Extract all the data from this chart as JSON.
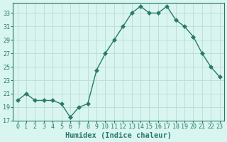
{
  "x": [
    0,
    1,
    2,
    3,
    4,
    5,
    6,
    7,
    8,
    9,
    10,
    11,
    12,
    13,
    14,
    15,
    16,
    17,
    18,
    19,
    20,
    21,
    22,
    23
  ],
  "y": [
    20,
    21,
    20,
    20,
    20,
    19.5,
    17.5,
    19,
    19.5,
    24.5,
    27,
    29,
    31,
    33,
    34,
    33,
    33,
    34,
    32,
    31,
    29.5,
    27,
    25,
    23.5
  ],
  "line_color": "#2a7a6a",
  "marker": "D",
  "marker_size": 3,
  "bg_color": "#d8f5f0",
  "grid_color": "#c0ddd8",
  "xlabel": "Humidex (Indice chaleur)",
  "xlim": [
    -0.5,
    23.5
  ],
  "ylim": [
    17,
    34.5
  ],
  "yticks": [
    17,
    19,
    21,
    23,
    25,
    27,
    29,
    31,
    33
  ],
  "xtick_labels": [
    "0",
    "1",
    "2",
    "3",
    "4",
    "5",
    "6",
    "7",
    "8",
    "9",
    "10",
    "11",
    "12",
    "13",
    "14",
    "15",
    "16",
    "17",
    "18",
    "19",
    "20",
    "21",
    "22",
    "23"
  ],
  "tick_color": "#2a7a6a",
  "label_fontsize": 7.5,
  "tick_fontsize": 6.0
}
